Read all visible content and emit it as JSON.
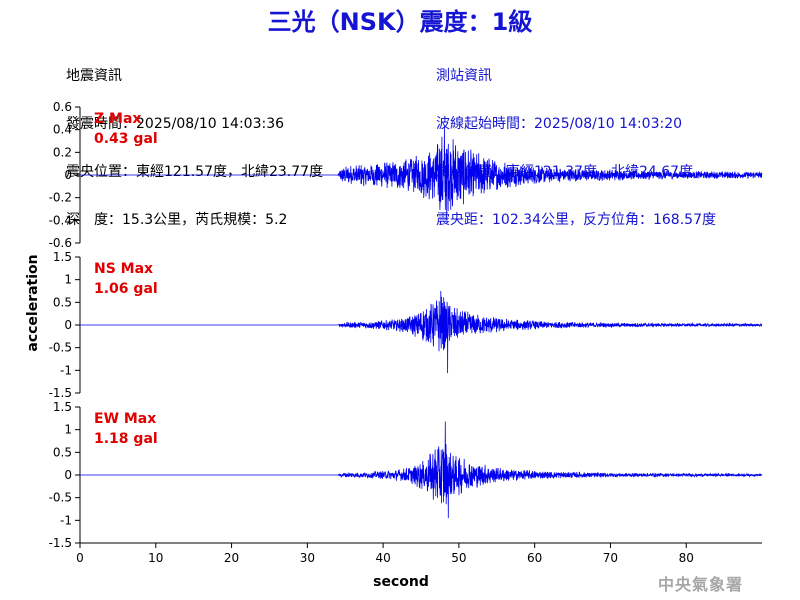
{
  "title": "三光（NSK）震度：1級",
  "quake": {
    "heading": "地震資訊",
    "time": "發震時間：2025/08/10 14:03:36",
    "epicenter": "震央位置：東經121.57度，北緯23.77度",
    "depth_mag": "深　度：15.3公里，芮氏規模：5.2"
  },
  "station": {
    "heading": "測站資訊",
    "wave_time": "波線起始時間：2025/08/10 14:03:20",
    "location": "測站位置：東經121.37度，北緯24.67度",
    "distance": "震央距：102.34公里，反方位角：168.57度"
  },
  "agency": "中央氣象署",
  "colors": {
    "trace": "#0000ee",
    "title": "#1414d2",
    "max_label": "#e00000",
    "agency": "#a7a7a7"
  },
  "chart_data": {
    "type": "line",
    "xlabel": "second",
    "ylabel": "acceleration",
    "xlim": [
      0,
      90
    ],
    "xticks": [
      0,
      10,
      20,
      30,
      40,
      50,
      60,
      70,
      80
    ],
    "panels": [
      {
        "name": "Z",
        "max_label": "Z Max",
        "max_value": "0.43 gal",
        "ylim": [
          -0.6,
          0.6
        ],
        "yticks": [
          0.6,
          0.4,
          0.2,
          0,
          -0.2,
          -0.4,
          -0.6
        ],
        "ytick_labels": [
          "0.6",
          "0.4",
          "0.2",
          "0",
          "-0.2",
          "-0.4",
          "-0.6"
        ],
        "onset": 34,
        "peak": 0.43,
        "trough": -0.4,
        "envelope": [
          [
            0,
            0
          ],
          [
            34,
            0
          ],
          [
            34.5,
            0.08
          ],
          [
            36,
            0.09
          ],
          [
            40,
            0.12
          ],
          [
            44,
            0.16
          ],
          [
            46,
            0.24
          ],
          [
            47,
            0.3
          ],
          [
            48,
            0.42
          ],
          [
            49,
            0.35
          ],
          [
            50,
            0.3
          ],
          [
            52,
            0.22
          ],
          [
            55,
            0.14
          ],
          [
            58,
            0.1
          ],
          [
            62,
            0.07
          ],
          [
            70,
            0.05
          ],
          [
            80,
            0.035
          ],
          [
            90,
            0.03
          ]
        ]
      },
      {
        "name": "NS",
        "max_label": "NS Max",
        "max_value": "1.06 gal",
        "ylim": [
          -1.5,
          1.5
        ],
        "yticks": [
          1.5,
          1,
          0.5,
          0,
          -0.5,
          -1,
          -1.5
        ],
        "ytick_labels": [
          "1.5",
          "1",
          "0.5",
          "0",
          "-0.5",
          "-1",
          "-1.5"
        ],
        "onset": 34,
        "peak": 0.75,
        "trough": -1.06,
        "envelope": [
          [
            0,
            0
          ],
          [
            34,
            0
          ],
          [
            34.5,
            0.06
          ],
          [
            38,
            0.08
          ],
          [
            42,
            0.14
          ],
          [
            44,
            0.25
          ],
          [
            46,
            0.45
          ],
          [
            47,
            0.6
          ],
          [
            48,
            0.7
          ],
          [
            49,
            0.45
          ],
          [
            50,
            0.35
          ],
          [
            52,
            0.26
          ],
          [
            55,
            0.17
          ],
          [
            58,
            0.12
          ],
          [
            62,
            0.08
          ],
          [
            70,
            0.05
          ],
          [
            80,
            0.035
          ],
          [
            90,
            0.03
          ]
        ]
      },
      {
        "name": "EW",
        "max_label": "EW Max",
        "max_value": "1.18 gal",
        "ylim": [
          -1.5,
          1.5
        ],
        "yticks": [
          1.5,
          1,
          0.5,
          0,
          -0.5,
          -1,
          -1.5
        ],
        "ytick_labels": [
          "1.5",
          "1",
          "0.5",
          "0",
          "-0.5",
          "-1",
          "-1.5"
        ],
        "onset": 34,
        "peak": 1.18,
        "trough": -0.95,
        "envelope": [
          [
            0,
            0
          ],
          [
            34,
            0
          ],
          [
            34.5,
            0.05
          ],
          [
            38,
            0.07
          ],
          [
            42,
            0.12
          ],
          [
            44,
            0.22
          ],
          [
            46,
            0.45
          ],
          [
            47,
            0.7
          ],
          [
            48,
            0.85
          ],
          [
            49,
            0.55
          ],
          [
            50,
            0.45
          ],
          [
            52,
            0.3
          ],
          [
            55,
            0.18
          ],
          [
            58,
            0.12
          ],
          [
            62,
            0.08
          ],
          [
            70,
            0.05
          ],
          [
            80,
            0.035
          ],
          [
            90,
            0.03
          ]
        ]
      }
    ]
  }
}
